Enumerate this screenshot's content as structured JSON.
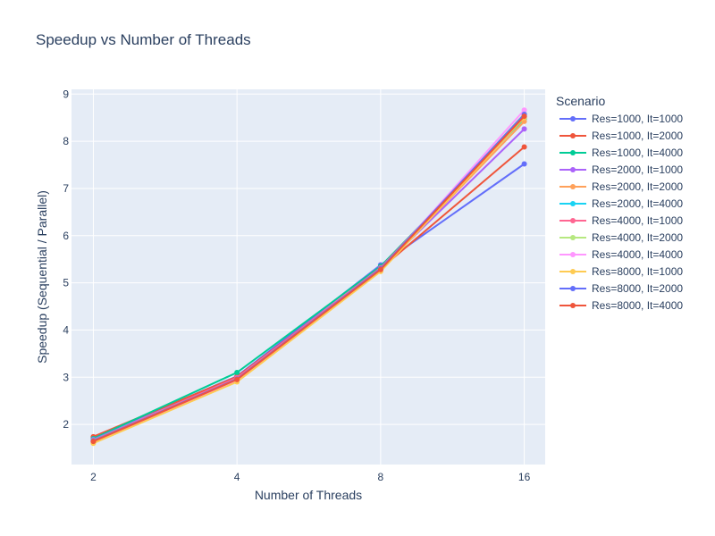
{
  "chart_data": {
    "type": "line",
    "title": "Speedup vs Number of Threads",
    "xlabel": "Number of Threads",
    "ylabel": "Speedup (Sequential / Parallel)",
    "x_scale": "log2",
    "x_ticks": [
      2,
      4,
      8,
      16
    ],
    "x_tick_labels": [
      "2",
      "4",
      "8",
      "16"
    ],
    "y_ticks": [
      2,
      3,
      4,
      5,
      6,
      7,
      8,
      9
    ],
    "y_tick_labels": [
      "2",
      "3",
      "4",
      "5",
      "6",
      "7",
      "8",
      "9"
    ],
    "ylim": [
      1.15,
      9.1
    ],
    "grid": true,
    "legend_title": "Scenario",
    "legend_position": "right",
    "x": [
      2,
      4,
      8,
      16
    ],
    "series": [
      {
        "name": "Res=1000, It=1000",
        "color": "#636efa",
        "values": [
          1.72,
          3.02,
          5.38,
          7.52
        ]
      },
      {
        "name": "Res=1000, It=2000",
        "color": "#EF553B",
        "values": [
          1.74,
          3.01,
          5.3,
          7.88
        ]
      },
      {
        "name": "Res=1000, It=4000",
        "color": "#00cc96",
        "values": [
          1.7,
          3.1,
          5.35,
          8.48
        ]
      },
      {
        "name": "Res=2000, It=1000",
        "color": "#ab63fa",
        "values": [
          1.68,
          2.97,
          5.3,
          8.26
        ]
      },
      {
        "name": "Res=2000, It=2000",
        "color": "#FFA15A",
        "values": [
          1.65,
          2.94,
          5.27,
          8.42
        ]
      },
      {
        "name": "Res=2000, It=4000",
        "color": "#19d3f3",
        "values": [
          1.67,
          2.96,
          5.28,
          8.52
        ]
      },
      {
        "name": "Res=4000, It=1000",
        "color": "#FF6692",
        "values": [
          1.66,
          2.99,
          5.32,
          8.55
        ]
      },
      {
        "name": "Res=4000, It=2000",
        "color": "#B6E880",
        "values": [
          1.64,
          2.95,
          5.29,
          8.58
        ]
      },
      {
        "name": "Res=4000, It=4000",
        "color": "#FF97FF",
        "values": [
          1.63,
          2.93,
          5.28,
          8.66
        ]
      },
      {
        "name": "Res=8000, It=1000",
        "color": "#FECB52",
        "values": [
          1.6,
          2.9,
          5.24,
          8.5
        ]
      },
      {
        "name": "Res=8000, It=2000",
        "color": "#636efa",
        "values": [
          1.65,
          2.96,
          5.3,
          8.57
        ]
      },
      {
        "name": "Res=8000, It=4000",
        "color": "#EF553B",
        "values": [
          1.64,
          2.95,
          5.28,
          8.53
        ]
      }
    ]
  }
}
